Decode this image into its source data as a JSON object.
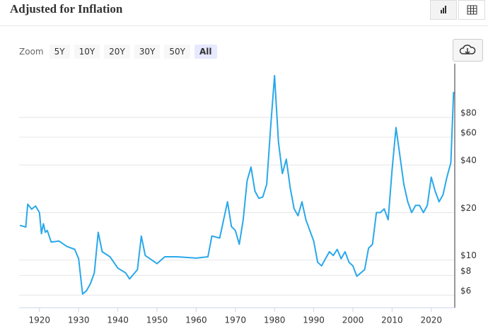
{
  "ui": {
    "zoom_label": "Zoom",
    "zoom_buttons": [
      "5Y",
      "10Y",
      "20Y",
      "30Y",
      "50Y",
      "All"
    ]
  },
  "chart_data": {
    "type": "line",
    "title": "Adjusted for Inflation",
    "color": "#29a8ea",
    "y_scale": "log",
    "grid": true,
    "xlim": [
      1914.8,
      2026
    ],
    "xticks": [
      1920,
      1930,
      1940,
      1950,
      1960,
      1970,
      1980,
      1990,
      2000,
      2010,
      2020
    ],
    "ylim": [
      5,
      175
    ],
    "yticks": [
      {
        "value": 80,
        "label": "$80"
      },
      {
        "value": 60,
        "label": "$60"
      },
      {
        "value": 40,
        "label": "$40"
      },
      {
        "value": 20,
        "label": "$20"
      },
      {
        "value": 10,
        "label": "$10"
      },
      {
        "value": 8,
        "label": "$8"
      },
      {
        "value": 6,
        "label": "$6"
      }
    ],
    "x": [
      1915,
      1916.5,
      1917,
      1918,
      1919,
      1920,
      1920.5,
      1921,
      1921.5,
      1922,
      1923,
      1925,
      1927,
      1929,
      1930,
      1931,
      1932,
      1933,
      1934,
      1935,
      1936,
      1938,
      1940,
      1942,
      1943,
      1945,
      1946,
      1947,
      1950,
      1952,
      1955,
      1960,
      1963,
      1964,
      1966,
      1967,
      1968,
      1969,
      1970,
      1971,
      1972,
      1973,
      1974,
      1975,
      1976,
      1977,
      1978,
      1979,
      1980,
      1981,
      1982,
      1983,
      1984,
      1985,
      1986,
      1987,
      1988,
      1989,
      1990,
      1991,
      1992,
      1993,
      1994,
      1995,
      1996,
      1997,
      1998,
      1999,
      2000,
      2001,
      2002,
      2003,
      2004,
      2005,
      2006,
      2007,
      2008,
      2009,
      2010,
      2011,
      2012,
      2013,
      2014,
      2015,
      2016,
      2017,
      2018,
      2019,
      2020,
      2021,
      2022,
      2023,
      2024,
      2025,
      2025.7
    ],
    "values": [
      16.6,
      16.2,
      22.6,
      21,
      22,
      20,
      14.7,
      17,
      15,
      15.4,
      13,
      13.2,
      12.2,
      11.7,
      10.2,
      6.1,
      6.4,
      7.1,
      8.3,
      15,
      11.3,
      10.5,
      8.9,
      8.3,
      7.6,
      8.7,
      14.2,
      10.7,
      9.5,
      10.5,
      10.5,
      10.3,
      10.5,
      14.2,
      13.8,
      18,
      23.4,
      16.3,
      15.4,
      12.6,
      18,
      31.8,
      38.8,
      27.3,
      24.6,
      25.1,
      30.2,
      69,
      147,
      56,
      35.3,
      43.5,
      28.7,
      21.1,
      19.1,
      23.4,
      18,
      15.4,
      13.2,
      9.7,
      9.2,
      10.2,
      11.3,
      10.7,
      11.7,
      10.2,
      11.3,
      9.7,
      9.2,
      7.9,
      8.3,
      8.7,
      11.9,
      12.6,
      20,
      20,
      21.1,
      18,
      37.2,
      69,
      45.7,
      30.2,
      23.4,
      20,
      22.2,
      22.2,
      20,
      22.2,
      33.5,
      27.3,
      23.4,
      25.9,
      33.5,
      41.3,
      116
    ]
  }
}
